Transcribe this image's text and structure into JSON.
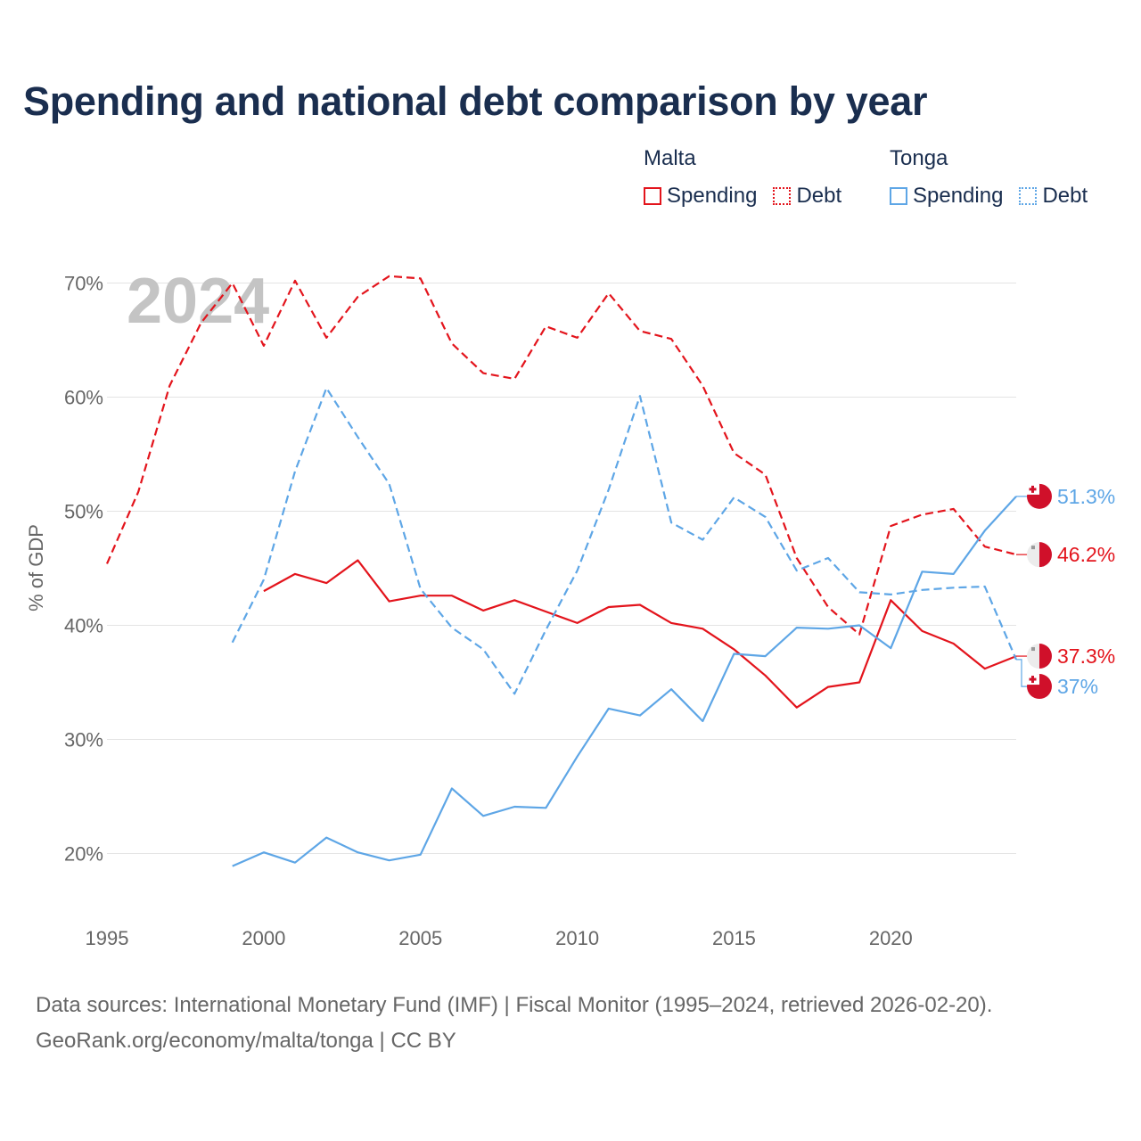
{
  "title": "Spending and national debt comparison by year",
  "legend": {
    "groups": [
      {
        "country": "Malta",
        "items": [
          {
            "label": "Spending",
            "style": "solid",
            "color": "#e3141c"
          },
          {
            "label": "Debt",
            "style": "dotted",
            "color": "#e3141c"
          }
        ]
      },
      {
        "country": "Tonga",
        "items": [
          {
            "label": "Spending",
            "style": "solid",
            "color": "#5ea6e6"
          },
          {
            "label": "Debt",
            "style": "dotted",
            "color": "#5ea6e6"
          }
        ]
      }
    ]
  },
  "footer": {
    "line1": "Data sources: International Monetary Fund (IMF) | Fiscal Monitor (1995–2024, retrieved 2026-02-20).",
    "line2": "GeoRank.org/economy/malta/tonga | CC BY"
  },
  "chart_data": {
    "type": "line",
    "title": "Spending and national debt comparison by year",
    "ylabel": "% of GDP",
    "xlabel": "",
    "year_watermark": "2024",
    "xlim": [
      1995,
      2024
    ],
    "ylim": [
      15,
      73
    ],
    "x_ticks": [
      1995,
      2000,
      2005,
      2010,
      2015,
      2020
    ],
    "y_ticks": [
      20,
      30,
      40,
      50,
      60,
      70
    ],
    "y_tick_labels": [
      "20%",
      "30%",
      "40%",
      "50%",
      "60%",
      "70%"
    ],
    "grid": true,
    "series": [
      {
        "name": "Malta Debt",
        "country": "Malta",
        "color": "#e3141c",
        "dashed": true,
        "x": [
          1995,
          1996,
          1997,
          1998,
          1999,
          2000,
          2001,
          2002,
          2003,
          2004,
          2005,
          2006,
          2007,
          2008,
          2009,
          2010,
          2011,
          2012,
          2013,
          2014,
          2015,
          2016,
          2017,
          2018,
          2019,
          2020,
          2021,
          2022,
          2023,
          2024
        ],
        "values": [
          45.4,
          51.7,
          61.0,
          66.5,
          70.0,
          64.5,
          70.2,
          65.2,
          68.8,
          70.6,
          70.4,
          64.7,
          62.1,
          61.6,
          66.2,
          65.2,
          69.1,
          65.8,
          65.1,
          61.0,
          55.1,
          53.2,
          45.9,
          41.6,
          39.2,
          48.7,
          49.7,
          50.2,
          46.9,
          46.2
        ],
        "end_label": "46.2%"
      },
      {
        "name": "Malta Spending",
        "country": "Malta",
        "color": "#e3141c",
        "dashed": false,
        "x": [
          2000,
          2001,
          2002,
          2003,
          2004,
          2005,
          2006,
          2007,
          2008,
          2009,
          2010,
          2011,
          2012,
          2013,
          2014,
          2015,
          2016,
          2017,
          2018,
          2019,
          2020,
          2021,
          2022,
          2023,
          2024
        ],
        "values": [
          43.0,
          44.5,
          43.7,
          45.7,
          42.1,
          42.6,
          42.6,
          41.3,
          42.2,
          41.2,
          40.2,
          41.6,
          41.8,
          40.2,
          39.7,
          37.9,
          35.6,
          32.8,
          34.6,
          35.0,
          42.2,
          39.5,
          38.4,
          36.2,
          37.3
        ],
        "end_label": "37.3%"
      },
      {
        "name": "Tonga Debt",
        "country": "Tonga",
        "color": "#5ea6e6",
        "dashed": true,
        "x": [
          1999,
          2000,
          2001,
          2002,
          2003,
          2004,
          2005,
          2006,
          2007,
          2008,
          2009,
          2010,
          2011,
          2012,
          2013,
          2014,
          2015,
          2016,
          2017,
          2018,
          2019,
          2020,
          2021,
          2022,
          2023,
          2024
        ],
        "values": [
          38.5,
          44.0,
          53.5,
          60.8,
          56.5,
          52.4,
          43.2,
          39.8,
          37.9,
          34.0,
          39.6,
          44.8,
          51.9,
          60.1,
          49.0,
          47.5,
          51.2,
          49.5,
          44.8,
          45.9,
          42.9,
          42.7,
          43.1,
          43.3,
          43.4,
          37.0
        ],
        "end_label": "37%"
      },
      {
        "name": "Tonga Spending",
        "country": "Tonga",
        "color": "#5ea6e6",
        "dashed": false,
        "x": [
          1999,
          2000,
          2001,
          2002,
          2003,
          2004,
          2005,
          2006,
          2007,
          2008,
          2009,
          2010,
          2011,
          2012,
          2013,
          2014,
          2015,
          2016,
          2017,
          2018,
          2019,
          2020,
          2021,
          2022,
          2023,
          2024
        ],
        "values": [
          18.9,
          20.1,
          19.2,
          21.4,
          20.1,
          19.4,
          19.9,
          25.7,
          23.3,
          24.1,
          24.0,
          28.5,
          32.7,
          32.1,
          34.4,
          31.6,
          37.5,
          37.3,
          39.8,
          39.7,
          40.0,
          38.0,
          44.7,
          44.5,
          48.3,
          51.3
        ],
        "end_label": "51.3%"
      }
    ]
  }
}
